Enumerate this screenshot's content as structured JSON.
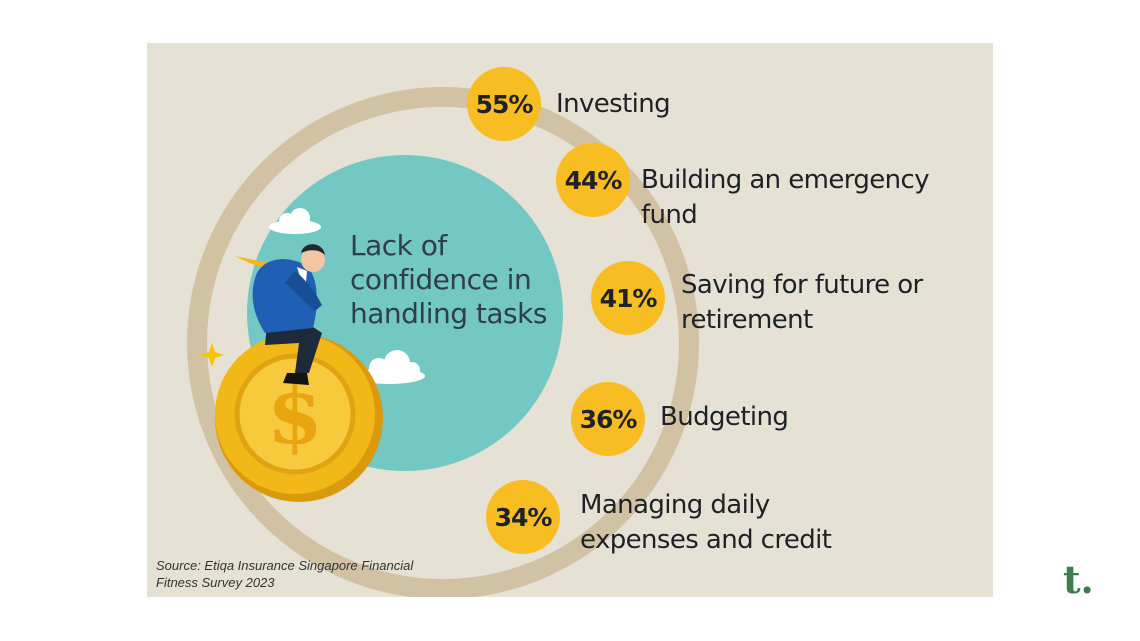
{
  "chart_data": {
    "type": "bar",
    "title": "Lack of confidence in handling tasks",
    "categories": [
      "Investing",
      "Building an emergency fund",
      "Saving for future or retirement",
      "Budgeting",
      "Managing daily expenses and credit"
    ],
    "values": [
      55,
      44,
      41,
      36,
      34
    ],
    "value_labels": [
      "55%",
      "44%",
      "41%",
      "36%",
      "34%"
    ],
    "unit": "%"
  },
  "source": "Source: Etiqa Insurance Singapore Financial Fitness Survey 2023",
  "logo": "t.",
  "colors": {
    "panel": "#e6e1d5",
    "ring": "#d2c2a4",
    "center_circle": "#73c8c3",
    "badge": "#f7bd22",
    "coin": "#f2b817",
    "logo": "#3c7d4d"
  },
  "icons": [
    "coin-dollar-icon",
    "businessman-illustration",
    "cloud-icon",
    "sparkle-icon"
  ]
}
